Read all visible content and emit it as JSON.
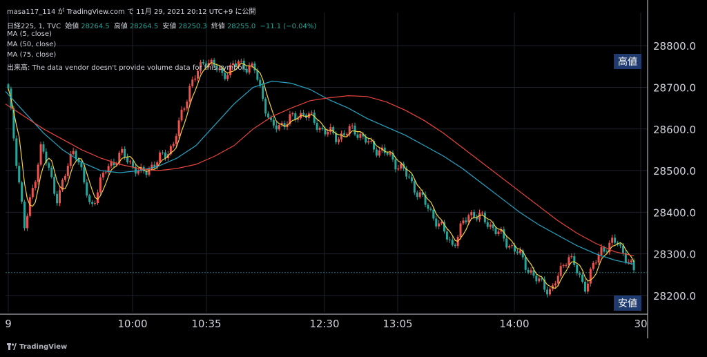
{
  "header": {
    "title": "masa117_114 が TradingView.com で 11月 29, 2021 20:12 UTC+9 に公開",
    "symbol": "日経225, 1, TVC",
    "open_label": "始値",
    "open": "28264.5",
    "high_label": "高値",
    "high": "28264.5",
    "low_label": "安値",
    "low": "28250.3",
    "close_label": "終値",
    "close": "28255.0",
    "change": "−11.1 (−0.04%)",
    "ma5": "MA (5, close)",
    "ma50": "MA (50, close)",
    "ma75": "MA (75, close)",
    "volume_note": "出来高: The data vendor doesn't provide volume data for this symbol."
  },
  "badges": {
    "high": "高値",
    "low": "安値"
  },
  "footer": {
    "brand": "TradingView"
  },
  "colors": {
    "up": "#ef5350",
    "down": "#26a69a",
    "ma5": "#f5d33f",
    "ma50": "#26a6c6",
    "ma75": "#e8443a",
    "last_line": "#1f6f7a",
    "grid": "#1e222d"
  },
  "chart_data": {
    "type": "candlestick",
    "yticks": [
      "28800.0",
      "28700.0",
      "28600.0",
      "28500.0",
      "28400.0",
      "28300.0",
      "28200.0"
    ],
    "ylim": [
      28160,
      28880
    ],
    "xticks": [
      "9",
      "10:00",
      "10:35",
      "12:30",
      "13:05",
      "14:00",
      "30"
    ],
    "last_value": 28255.0,
    "close_path": [
      28690,
      28360,
      28560,
      28430,
      28560,
      28410,
      28510,
      28540,
      28490,
      28520,
      28560,
      28700,
      28770,
      28730,
      28760,
      28740,
      28600,
      28620,
      28640,
      28600,
      28580,
      28600,
      28560,
      28540,
      28500,
      28440,
      28380,
      28320,
      28400,
      28380,
      28340,
      28300,
      28240,
      28210,
      28300,
      28220,
      28310,
      28330,
      28255
    ],
    "series": [
      {
        "name": "MA (50, close)",
        "values": [
          28690,
          28640,
          28590,
          28550,
          28520,
          28500,
          28495,
          28500,
          28510,
          28530,
          28560,
          28610,
          28660,
          28700,
          28715,
          28710,
          28695,
          28670,
          28650,
          28625,
          28605,
          28585,
          28560,
          28535,
          28505,
          28470,
          28435,
          28400,
          28370,
          28345,
          28320,
          28300,
          28285,
          28275
        ]
      },
      {
        "name": "MA (75, close)",
        "values": [
          28660,
          28630,
          28600,
          28575,
          28550,
          28530,
          28515,
          28505,
          28500,
          28505,
          28515,
          28535,
          28560,
          28600,
          28630,
          28650,
          28668,
          28675,
          28680,
          28678,
          28665,
          28645,
          28620,
          28590,
          28555,
          28520,
          28485,
          28450,
          28415,
          28380,
          28350,
          28325,
          28305,
          28295
        ]
      }
    ]
  }
}
